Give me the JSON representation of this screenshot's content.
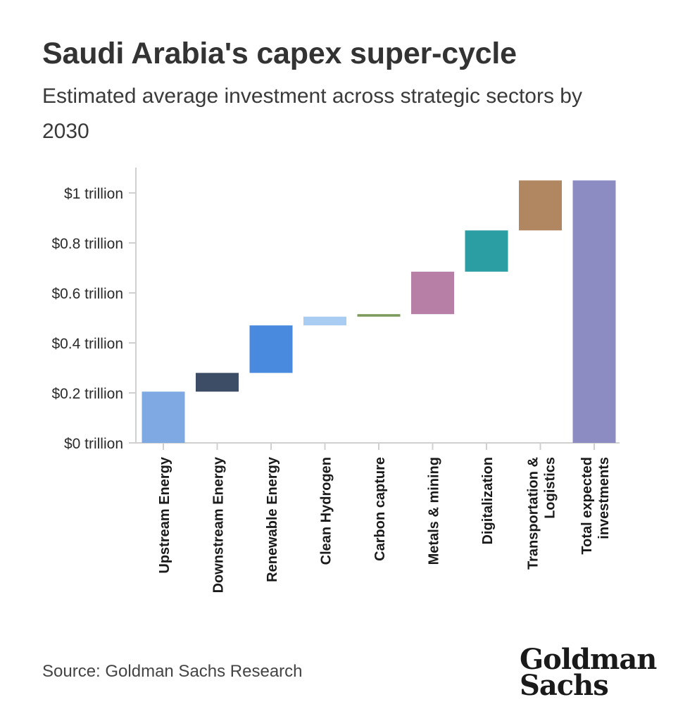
{
  "title": "Saudi Arabia's capex super-cycle",
  "subtitle": "Estimated average investment across strategic sectors by 2030",
  "source": "Source: Goldman Sachs Research",
  "logo": {
    "line1": "Goldman",
    "line2": "Sachs"
  },
  "chart_data": {
    "type": "bar",
    "subtype": "waterfall",
    "title": "Saudi Arabia's capex super-cycle",
    "subtitle": "Estimated average investment across strategic sectors by 2030",
    "xlabel": "",
    "ylabel": "",
    "ylim": [
      0,
      1.1
    ],
    "yticks": [
      0,
      0.2,
      0.4,
      0.6,
      0.8,
      1.0
    ],
    "ytick_labels": [
      "$0 trillion",
      "$0.2 trillion",
      "$0.4 trillion",
      "$0.6 trillion",
      "$0.8 trillion",
      "$1 trillion"
    ],
    "grid": false,
    "legend": "none",
    "unit": "trillion USD",
    "categories": [
      [
        "Upstream Energy"
      ],
      [
        "Downstream Energy"
      ],
      [
        "Renewable Energy"
      ],
      [
        "Clean Hydrogen"
      ],
      [
        "Carbon capture"
      ],
      [
        "Metals & mining"
      ],
      [
        "Digitalization"
      ],
      [
        "Transportation &",
        "Logistics"
      ],
      [
        "Total expected",
        "investments"
      ]
    ],
    "values": [
      0.205,
      0.075,
      0.19,
      0.035,
      0.01,
      0.17,
      0.165,
      0.2,
      1.05
    ],
    "starts": [
      0,
      0.205,
      0.28,
      0.47,
      0.505,
      0.515,
      0.685,
      0.85,
      0
    ],
    "colors": [
      "#7fa9e2",
      "#3e4d66",
      "#4a8ade",
      "#a9cdf2",
      "#7c9a5a",
      "#b87fa6",
      "#2b9ea3",
      "#b08761",
      "#8c8cc2"
    ]
  }
}
